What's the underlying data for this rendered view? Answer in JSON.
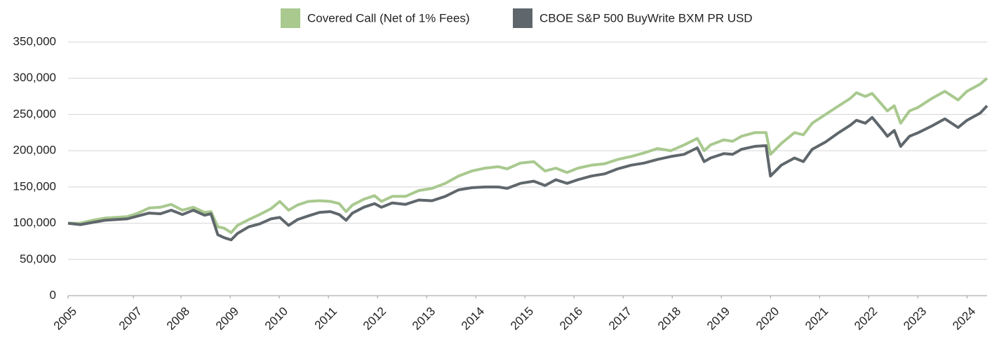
{
  "chart_data": {
    "type": "line",
    "x": [
      0,
      0.25,
      0.5,
      0.75,
      1.2,
      1.43,
      1.65,
      1.88,
      2.1,
      2.33,
      2.55,
      2.78,
      2.91,
      3.05,
      3.18,
      3.32,
      3.45,
      3.68,
      3.9,
      4.13,
      4.31,
      4.49,
      4.67,
      4.89,
      5.12,
      5.34,
      5.52,
      5.66,
      5.79,
      6.02,
      6.24,
      6.38,
      6.6,
      6.87,
      7.14,
      7.41,
      7.68,
      7.95,
      8.22,
      8.49,
      8.76,
      8.94,
      9.21,
      9.48,
      9.71,
      9.93,
      10.16,
      10.38,
      10.65,
      10.92,
      11.19,
      11.46,
      11.73,
      12.0,
      12.27,
      12.54,
      12.81,
      12.95,
      13.08,
      13.35,
      13.53,
      13.71,
      13.98,
      14.21,
      14.3,
      14.52,
      14.79,
      14.97,
      15.15,
      15.42,
      15.69,
      15.92,
      16.05,
      16.23,
      16.37,
      16.59,
      16.68,
      16.82,
      16.95,
      17.13,
      17.31,
      17.58,
      17.85,
      18.12,
      18.3,
      18.57,
      18.71
    ],
    "series": [
      {
        "name": "Covered Call (Net of 1% Fees)",
        "color": "#a9c98f",
        "values": [
          100000,
          100000,
          104000,
          107000,
          109000,
          114000,
          121000,
          122000,
          126000,
          118000,
          122000,
          115000,
          116000,
          95000,
          93000,
          87000,
          97000,
          105000,
          112000,
          120000,
          130000,
          118000,
          125000,
          130000,
          131000,
          130000,
          127000,
          116000,
          125000,
          133000,
          138000,
          130000,
          137000,
          137000,
          145000,
          148000,
          155000,
          165000,
          172000,
          176000,
          178000,
          175000,
          183000,
          185000,
          172000,
          176000,
          170000,
          176000,
          180000,
          182000,
          188000,
          192000,
          197000,
          203000,
          200000,
          208000,
          217000,
          200000,
          208000,
          215000,
          213000,
          220000,
          225000,
          225000,
          195000,
          210000,
          225000,
          222000,
          238000,
          250000,
          262000,
          272000,
          280000,
          275000,
          279000,
          262000,
          255000,
          262000,
          238000,
          255000,
          260000,
          272000,
          282000,
          270000,
          282000,
          292000,
          300000
        ]
      },
      {
        "name": "CBOE S&P 500 BuyWrite BXM PR USD",
        "color": "#5f676c",
        "values": [
          100000,
          98000,
          101000,
          104000,
          106000,
          110000,
          114000,
          113000,
          118000,
          112000,
          118000,
          111000,
          113000,
          84000,
          80000,
          77000,
          86000,
          95000,
          99000,
          106000,
          108000,
          97000,
          105000,
          110000,
          115000,
          116000,
          112000,
          104000,
          114000,
          122000,
          127000,
          122000,
          128000,
          126000,
          132000,
          131000,
          137000,
          146000,
          149000,
          150000,
          150000,
          148000,
          155000,
          158000,
          152000,
          160000,
          155000,
          160000,
          165000,
          168000,
          175000,
          180000,
          183000,
          188000,
          192000,
          195000,
          204000,
          185000,
          190000,
          196000,
          195000,
          202000,
          206000,
          207000,
          165000,
          180000,
          190000,
          185000,
          202000,
          212000,
          225000,
          235000,
          242000,
          238000,
          246000,
          228000,
          220000,
          228000,
          206000,
          220000,
          225000,
          234000,
          244000,
          232000,
          242000,
          252000,
          262000
        ]
      }
    ],
    "xlim": [
      0,
      18.71
    ],
    "xticks": [
      {
        "value": 0,
        "label": "2005"
      },
      {
        "value": 1.33,
        "label": "2007"
      },
      {
        "value": 2.3,
        "label": "2008"
      },
      {
        "value": 3.3,
        "label": "2009"
      },
      {
        "value": 4.3,
        "label": "2010"
      },
      {
        "value": 5.3,
        "label": "2011"
      },
      {
        "value": 6.3,
        "label": "2012"
      },
      {
        "value": 7.3,
        "label": "2013"
      },
      {
        "value": 8.3,
        "label": "2014"
      },
      {
        "value": 9.3,
        "label": "2015"
      },
      {
        "value": 10.3,
        "label": "2016"
      },
      {
        "value": 11.3,
        "label": "2017"
      },
      {
        "value": 12.3,
        "label": "2018"
      },
      {
        "value": 13.3,
        "label": "2019"
      },
      {
        "value": 14.3,
        "label": "2020"
      },
      {
        "value": 15.3,
        "label": "2021"
      },
      {
        "value": 16.3,
        "label": "2022"
      },
      {
        "value": 17.3,
        "label": "2023"
      },
      {
        "value": 18.3,
        "label": "2024"
      }
    ],
    "ylim": [
      0,
      350000
    ],
    "yticks": [
      0,
      {
        "value": 50000,
        "label": "50,000"
      },
      {
        "value": 100000,
        "label": "100,000"
      },
      {
        "value": 150000,
        "label": "150,000"
      },
      {
        "value": 200000,
        "label": "200,000"
      },
      {
        "value": 250000,
        "label": "250,000"
      },
      {
        "value": 300000,
        "label": "300,000"
      },
      {
        "value": 350000,
        "label": "350,000"
      }
    ],
    "grid": true,
    "legend": "top"
  }
}
